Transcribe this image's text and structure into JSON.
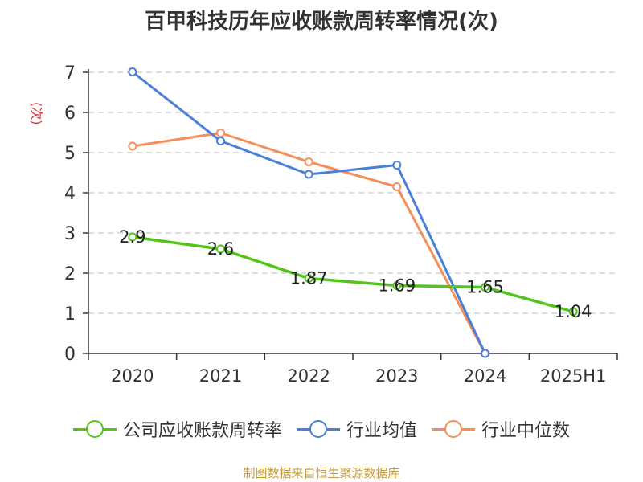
{
  "header": {
    "title": "百甲科技历年应收账款周转率情况(次)"
  },
  "footer": {
    "source": "制图数据来自恒生聚源数据库"
  },
  "chart_data": {
    "type": "line",
    "title": "百甲科技历年应收账款周转率情况(次)",
    "ylabel": "(次)",
    "xlabel": "",
    "categories": [
      "2020",
      "2021",
      "2022",
      "2023",
      "2024",
      "2025H1"
    ],
    "ylim": [
      0,
      7
    ],
    "yticks": [
      0,
      1,
      2,
      3,
      4,
      5,
      6,
      7
    ],
    "grid": true,
    "legend_position": "bottom",
    "series": [
      {
        "name": "公司应收账款周转率",
        "color": "#52c41a",
        "values": [
          2.9,
          2.6,
          1.87,
          1.69,
          1.65,
          1.04
        ],
        "labels": [
          "2.9",
          "2.6",
          "1.87",
          "1.69",
          "1.65",
          "1.04"
        ]
      },
      {
        "name": "行业均值",
        "color": "#4a7fd9",
        "values": [
          7.01,
          5.29,
          4.46,
          4.69,
          0.0,
          null
        ]
      },
      {
        "name": "行业中位数",
        "color": "#f58f5a",
        "values": [
          5.16,
          5.49,
          4.77,
          4.15,
          0.0,
          null
        ]
      }
    ]
  }
}
